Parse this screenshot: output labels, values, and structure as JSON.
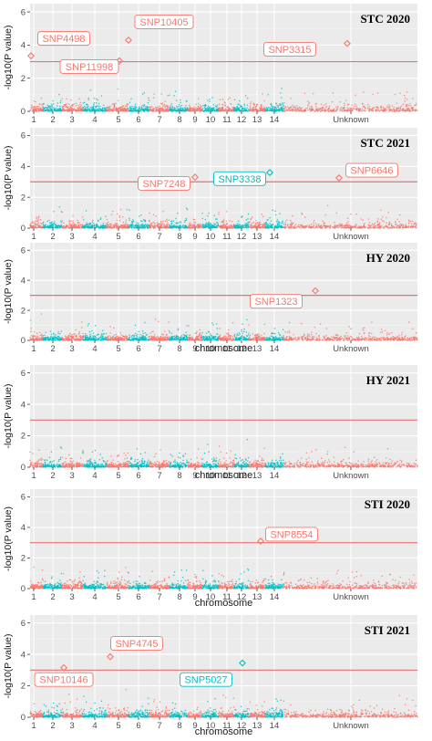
{
  "colors": {
    "panel_bg": "#ebebeb",
    "grid_major": "#ffffff",
    "salmon": "#f8766d",
    "teal": "#00bfc4",
    "threshold": "#e57373"
  },
  "chart_data": [
    {
      "type": "scatter",
      "title": "STC 2020",
      "ylabel": "-log10(P value)",
      "xlabel": "",
      "chromosome_labels": [
        "1",
        "2",
        "3",
        "4",
        "5",
        "6",
        "7",
        "8",
        "9",
        "10",
        "11",
        "12",
        "13",
        "14",
        "Unknown"
      ],
      "ylim": [
        0,
        6.5
      ],
      "yticks": [
        "0",
        "2",
        "4",
        "6"
      ],
      "threshold": 3.0,
      "grid": true,
      "highlighted_snps": [
        {
          "name": "SNP4498",
          "chromosome": "1",
          "value": 3.35,
          "color": "salmon"
        },
        {
          "name": "SNP11998",
          "chromosome": "5",
          "value": 3.05,
          "color": "salmon"
        },
        {
          "name": "SNP10405",
          "chromosome": "5",
          "value": 4.3,
          "color": "salmon"
        },
        {
          "name": "SNP3315",
          "chromosome": "Unknown",
          "value": 4.1,
          "color": "salmon"
        }
      ]
    },
    {
      "type": "scatter",
      "title": "STC 2021",
      "ylabel": "-log10(P value)",
      "xlabel": "",
      "chromosome_labels": [
        "1",
        "2",
        "3",
        "4",
        "5",
        "6",
        "7",
        "8",
        "9",
        "10",
        "11",
        "12",
        "13",
        "14",
        "Unknown"
      ],
      "ylim": [
        0,
        6.5
      ],
      "yticks": [
        "0",
        "2",
        "4",
        "6"
      ],
      "threshold": 3.0,
      "grid": true,
      "highlighted_snps": [
        {
          "name": "SNP7248",
          "chromosome": "9",
          "value": 3.3,
          "color": "salmon"
        },
        {
          "name": "SNP3338",
          "chromosome": "14",
          "value": 3.6,
          "color": "teal"
        },
        {
          "name": "SNP6646",
          "chromosome": "Unknown",
          "value": 3.25,
          "color": "salmon"
        }
      ]
    },
    {
      "type": "scatter",
      "title": "HY 2020",
      "ylabel": "-log10(P value)",
      "xlabel": "chromosome",
      "chromosome_labels": [
        "1",
        "2",
        "3",
        "4",
        "5",
        "6",
        "7",
        "8",
        "9",
        "10",
        "11",
        "12",
        "13",
        "14",
        "Unknown"
      ],
      "ylim": [
        0,
        6.5
      ],
      "yticks": [
        "0",
        "2",
        "4",
        "6"
      ],
      "threshold": 3.0,
      "grid": true,
      "highlighted_snps": [
        {
          "name": "SNP1323",
          "chromosome": "Unknown",
          "value": 3.3,
          "color": "salmon"
        }
      ]
    },
    {
      "type": "scatter",
      "title": "HY 2021",
      "ylabel": "-log10(P value)",
      "xlabel": "chromosome",
      "chromosome_labels": [
        "1",
        "2",
        "3",
        "4",
        "5",
        "6",
        "7",
        "8",
        "9",
        "10",
        "11",
        "12",
        "13",
        "14",
        "Unknown"
      ],
      "ylim": [
        0,
        6.5
      ],
      "yticks": [
        "0",
        "2",
        "4",
        "6"
      ],
      "threshold": 3.0,
      "grid": true,
      "highlighted_snps": []
    },
    {
      "type": "scatter",
      "title": "STI 2020",
      "ylabel": "-log10(P value)",
      "xlabel": "chromosome",
      "chromosome_labels": [
        "1",
        "2",
        "3",
        "4",
        "5",
        "6",
        "7",
        "8",
        "9",
        "10",
        "11",
        "12",
        "13",
        "14",
        "Unknown"
      ],
      "ylim": [
        0,
        6.5
      ],
      "yticks": [
        "0",
        "2",
        "4",
        "6"
      ],
      "threshold": 3.0,
      "grid": true,
      "highlighted_snps": [
        {
          "name": "SNP8554",
          "chromosome": "13",
          "value": 3.1,
          "color": "salmon"
        }
      ]
    },
    {
      "type": "scatter",
      "title": "STI 2021",
      "ylabel": "-log10(P value)",
      "xlabel": "chromosome",
      "chromosome_labels": [
        "1",
        "2",
        "3",
        "4",
        "5",
        "6",
        "7",
        "8",
        "9",
        "10",
        "11",
        "12",
        "13",
        "14",
        "Unknown"
      ],
      "ylim": [
        0,
        6.5
      ],
      "yticks": [
        "0",
        "2",
        "4",
        "6"
      ],
      "threshold": 3.0,
      "grid": true,
      "highlighted_snps": [
        {
          "name": "SNP10146",
          "chromosome": "2",
          "value": 3.15,
          "color": "salmon"
        },
        {
          "name": "SNP4745",
          "chromosome": "4",
          "value": 3.85,
          "color": "salmon"
        },
        {
          "name": "SNP5027",
          "chromosome": "12",
          "value": 3.45,
          "color": "teal"
        }
      ]
    }
  ]
}
